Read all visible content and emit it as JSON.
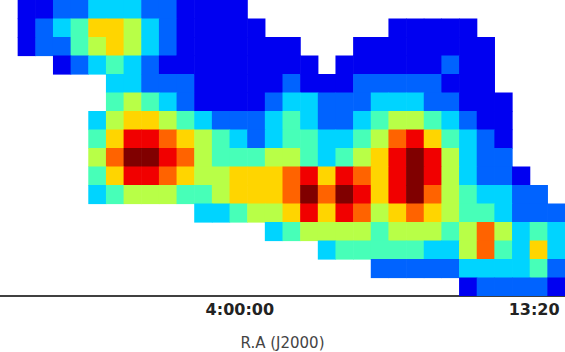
{
  "chart_data": {
    "type": "heatmap",
    "xlabel": "R.A (J2000)",
    "tick_labels": "x",
    "grid": false,
    "x": [
      13772,
      13820,
      13868,
      13916,
      13964,
      14012,
      14060,
      14108,
      14156,
      14204,
      14252,
      14300,
      14348,
      14396,
      14444,
      14492,
      14540,
      14588,
      14636,
      14684,
      14732,
      14780,
      14828,
      14876,
      14924,
      14972,
      15020,
      15068,
      15116,
      15164,
      15212,
      15260
    ],
    "xlim": [
      13748,
      15284
    ],
    "xticks": [
      {
        "value": 14400,
        "label": "4:00:00"
      },
      {
        "value": 15200,
        "label": "13:20"
      }
    ],
    "zlim": [
      0,
      9
    ],
    "cells": [
      [
        null,
        1,
        1,
        2,
        2,
        3,
        3,
        3,
        2,
        2,
        1,
        1,
        1,
        1,
        null,
        null,
        null,
        null,
        null,
        null,
        null,
        null,
        null,
        null,
        null,
        null,
        null,
        null,
        null,
        null,
        null,
        null
      ],
      [
        null,
        1,
        2,
        3,
        4,
        6,
        6,
        5,
        3,
        2,
        1,
        1,
        1,
        1,
        1,
        null,
        null,
        null,
        null,
        null,
        null,
        null,
        1,
        1,
        1,
        1,
        1,
        null,
        null,
        null,
        null,
        null
      ],
      [
        null,
        1,
        2,
        2,
        4,
        5,
        6,
        5,
        3,
        2,
        1,
        1,
        1,
        1,
        1,
        1,
        1,
        null,
        null,
        null,
        1,
        1,
        1,
        1,
        1,
        1,
        1,
        1,
        null,
        null,
        null,
        null
      ],
      [
        null,
        null,
        null,
        1,
        2,
        3,
        4,
        3,
        2,
        1,
        1,
        1,
        1,
        1,
        1,
        1,
        1,
        1,
        null,
        1,
        1,
        1,
        1,
        1,
        1,
        2,
        1,
        1,
        null,
        null,
        null,
        null
      ],
      [
        null,
        null,
        null,
        null,
        null,
        null,
        3,
        3,
        2,
        2,
        2,
        1,
        1,
        1,
        1,
        1,
        2,
        1,
        1,
        1,
        2,
        2,
        2,
        2,
        2,
        1,
        1,
        1,
        null,
        null,
        null,
        null
      ],
      [
        null,
        null,
        null,
        null,
        null,
        null,
        4,
        5,
        4,
        3,
        2,
        1,
        1,
        1,
        1,
        2,
        3,
        3,
        2,
        2,
        2,
        3,
        3,
        3,
        2,
        2,
        1,
        1,
        1,
        null,
        null,
        null
      ],
      [
        null,
        null,
        null,
        null,
        null,
        3,
        5,
        6,
        6,
        5,
        4,
        3,
        2,
        2,
        2,
        3,
        4,
        3,
        2,
        2,
        3,
        4,
        5,
        5,
        4,
        3,
        2,
        1,
        1,
        null,
        null,
        null
      ],
      [
        null,
        null,
        null,
        null,
        null,
        4,
        6,
        8,
        8,
        7,
        6,
        5,
        4,
        3,
        2,
        3,
        4,
        4,
        3,
        3,
        4,
        5,
        7,
        8,
        6,
        4,
        3,
        2,
        1,
        null,
        null,
        null
      ],
      [
        null,
        null,
        null,
        null,
        null,
        5,
        7,
        9,
        9,
        8,
        7,
        5,
        4,
        4,
        4,
        5,
        5,
        4,
        3,
        4,
        5,
        6,
        8,
        9,
        8,
        5,
        3,
        2,
        2,
        null,
        null,
        null
      ],
      [
        null,
        null,
        null,
        null,
        null,
        4,
        6,
        8,
        8,
        7,
        6,
        5,
        5,
        6,
        6,
        6,
        7,
        8,
        6,
        8,
        7,
        6,
        8,
        9,
        8,
        5,
        3,
        2,
        2,
        1,
        null,
        null
      ],
      [
        null,
        null,
        null,
        null,
        null,
        3,
        4,
        5,
        5,
        5,
        4,
        4,
        5,
        6,
        6,
        6,
        7,
        9,
        7,
        9,
        8,
        6,
        8,
        9,
        7,
        5,
        4,
        3,
        3,
        2,
        2,
        null
      ],
      [
        null,
        null,
        null,
        null,
        null,
        null,
        null,
        null,
        null,
        null,
        null,
        3,
        3,
        4,
        5,
        5,
        6,
        8,
        6,
        8,
        7,
        5,
        6,
        7,
        6,
        5,
        4,
        4,
        3,
        2,
        2,
        2
      ],
      [
        null,
        null,
        null,
        null,
        null,
        null,
        null,
        null,
        null,
        null,
        null,
        null,
        null,
        null,
        null,
        3,
        4,
        5,
        5,
        5,
        5,
        4,
        5,
        5,
        5,
        4,
        5,
        7,
        5,
        3,
        4,
        3
      ],
      [
        null,
        null,
        null,
        null,
        null,
        null,
        null,
        null,
        null,
        null,
        null,
        null,
        null,
        null,
        null,
        null,
        null,
        null,
        3,
        4,
        4,
        4,
        4,
        4,
        3,
        3,
        5,
        7,
        4,
        3,
        6,
        3
      ],
      [
        null,
        null,
        null,
        null,
        null,
        null,
        null,
        null,
        null,
        null,
        null,
        null,
        null,
        null,
        null,
        null,
        null,
        null,
        null,
        null,
        null,
        2,
        2,
        2,
        2,
        2,
        3,
        3,
        3,
        3,
        4,
        2
      ],
      [
        null,
        null,
        null,
        null,
        null,
        null,
        null,
        null,
        null,
        null,
        null,
        null,
        null,
        null,
        null,
        null,
        null,
        null,
        null,
        null,
        null,
        null,
        null,
        null,
        null,
        null,
        1,
        2,
        2,
        2,
        2,
        1
      ]
    ]
  }
}
